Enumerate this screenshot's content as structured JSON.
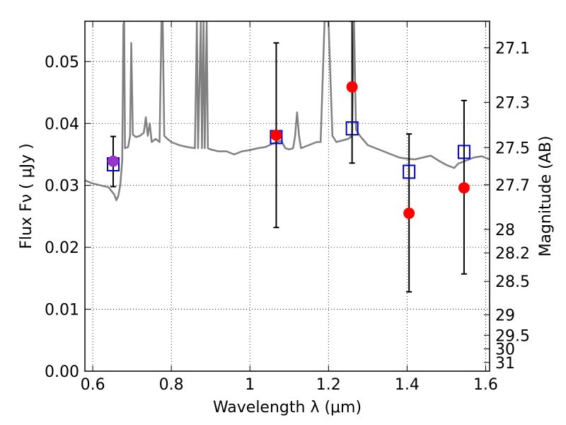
{
  "chart_data": {
    "type": "scatter",
    "xlabel": "Wavelength  λ (μm)",
    "ylabel": "Flux  Fν  ( μJy )",
    "y2label": "Magnitude (AB)",
    "xlim": [
      0.58,
      1.61
    ],
    "ylim": [
      0.0,
      0.0565
    ],
    "x_ticks": [
      0.6,
      0.8,
      1.0,
      1.2,
      1.4,
      1.6
    ],
    "x_tick_labels": [
      "0.6",
      "0.8",
      "1",
      "1.2",
      "1.4",
      "1.6"
    ],
    "y_ticks": [
      0.0,
      0.01,
      0.02,
      0.03,
      0.04,
      0.05
    ],
    "y_tick_labels": [
      "0.00",
      "0.01",
      "0.02",
      "0.03",
      "0.04",
      "0.05"
    ],
    "y2_ticks": [
      {
        "label": "27.1",
        "flux": 0.0522
      },
      {
        "label": "27.3",
        "flux": 0.0434
      },
      {
        "label": "27.5",
        "flux": 0.0361
      },
      {
        "label": "27.7",
        "flux": 0.0301
      },
      {
        "label": "28",
        "flux": 0.0229
      },
      {
        "label": "28.2",
        "flux": 0.0191
      },
      {
        "label": "28.5",
        "flux": 0.0145
      },
      {
        "label": "29",
        "flux": 0.0091
      },
      {
        "label": "29.5",
        "flux": 0.0058
      },
      {
        "label": "30",
        "flux": 0.0036
      },
      {
        "label": "31",
        "flux": 0.0014
      }
    ],
    "grid": true,
    "colors": {
      "spectrum": "#808080",
      "observed": "#ff0000",
      "model": "#0000cc",
      "errorbar": "#000000",
      "overlap": "#9933cc"
    },
    "series": [
      {
        "marker": "line",
        "points": [
          [
            0.58,
            0.0308
          ],
          [
            0.6,
            0.0303
          ],
          [
            0.62,
            0.03
          ],
          [
            0.64,
            0.0297
          ],
          [
            0.655,
            0.0285
          ],
          [
            0.66,
            0.0276
          ],
          [
            0.665,
            0.0283
          ],
          [
            0.67,
            0.03
          ],
          [
            0.675,
            0.034
          ],
          [
            0.678,
            0.056
          ],
          [
            0.68,
            0.0565
          ],
          [
            0.682,
            0.036
          ],
          [
            0.69,
            0.0362
          ],
          [
            0.695,
            0.038
          ],
          [
            0.698,
            0.053
          ],
          [
            0.702,
            0.0382
          ],
          [
            0.71,
            0.0378
          ],
          [
            0.72,
            0.038
          ],
          [
            0.73,
            0.0385
          ],
          [
            0.735,
            0.041
          ],
          [
            0.74,
            0.038
          ],
          [
            0.745,
            0.04
          ],
          [
            0.75,
            0.037
          ],
          [
            0.76,
            0.0375
          ],
          [
            0.77,
            0.037
          ],
          [
            0.775,
            0.0565
          ],
          [
            0.778,
            0.0565
          ],
          [
            0.782,
            0.038
          ],
          [
            0.79,
            0.0375
          ],
          [
            0.8,
            0.037
          ],
          [
            0.82,
            0.0365
          ],
          [
            0.84,
            0.0362
          ],
          [
            0.86,
            0.036
          ],
          [
            0.865,
            0.0565
          ],
          [
            0.868,
            0.036
          ],
          [
            0.875,
            0.0565
          ],
          [
            0.878,
            0.036
          ],
          [
            0.882,
            0.0565
          ],
          [
            0.885,
            0.036
          ],
          [
            0.89,
            0.0565
          ],
          [
            0.893,
            0.036
          ],
          [
            0.9,
            0.0358
          ],
          [
            0.92,
            0.0355
          ],
          [
            0.94,
            0.0355
          ],
          [
            0.96,
            0.035
          ],
          [
            0.98,
            0.0355
          ],
          [
            1.0,
            0.0357
          ],
          [
            1.02,
            0.036
          ],
          [
            1.04,
            0.0362
          ],
          [
            1.06,
            0.0368
          ],
          [
            1.08,
            0.0372
          ],
          [
            1.09,
            0.036
          ],
          [
            1.1,
            0.0358
          ],
          [
            1.11,
            0.036
          ],
          [
            1.115,
            0.038
          ],
          [
            1.12,
            0.0418
          ],
          [
            1.125,
            0.038
          ],
          [
            1.13,
            0.036
          ],
          [
            1.15,
            0.0365
          ],
          [
            1.17,
            0.037
          ],
          [
            1.18,
            0.037
          ],
          [
            1.19,
            0.0565
          ],
          [
            1.2,
            0.0565
          ],
          [
            1.21,
            0.038
          ],
          [
            1.22,
            0.037
          ],
          [
            1.25,
            0.0375
          ],
          [
            1.26,
            0.038
          ],
          [
            1.265,
            0.0565
          ],
          [
            1.27,
            0.039
          ],
          [
            1.28,
            0.038
          ],
          [
            1.3,
            0.0365
          ],
          [
            1.32,
            0.036
          ],
          [
            1.34,
            0.0355
          ],
          [
            1.36,
            0.035
          ],
          [
            1.38,
            0.0345
          ],
          [
            1.4,
            0.0343
          ],
          [
            1.42,
            0.0342
          ],
          [
            1.44,
            0.0345
          ],
          [
            1.46,
            0.0348
          ],
          [
            1.48,
            0.034
          ],
          [
            1.5,
            0.0333
          ],
          [
            1.52,
            0.0328
          ],
          [
            1.53,
            0.0335
          ],
          [
            1.55,
            0.034
          ],
          [
            1.57,
            0.0345
          ],
          [
            1.59,
            0.0347
          ],
          [
            1.61,
            0.0342
          ]
        ]
      },
      {
        "marker": "circle",
        "points": [
          [
            0.652,
            0.0339
          ],
          [
            1.067,
            0.0381
          ],
          [
            1.26,
            0.0459
          ],
          [
            1.405,
            0.0255
          ],
          [
            1.545,
            0.0296
          ]
        ]
      },
      {
        "marker": "square",
        "points": [
          [
            0.652,
            0.0334
          ],
          [
            1.067,
            0.0378
          ],
          [
            1.26,
            0.0392
          ],
          [
            1.405,
            0.0322
          ],
          [
            1.545,
            0.0354
          ]
        ]
      },
      {
        "marker": "errorbar",
        "points": [
          [
            0.652,
            0.0298,
            0.0379
          ],
          [
            1.067,
            0.0232,
            0.053
          ],
          [
            1.26,
            0.0336,
            0.0565
          ],
          [
            1.405,
            0.0128,
            0.0383
          ],
          [
            1.545,
            0.0157,
            0.0437
          ]
        ]
      }
    ]
  }
}
